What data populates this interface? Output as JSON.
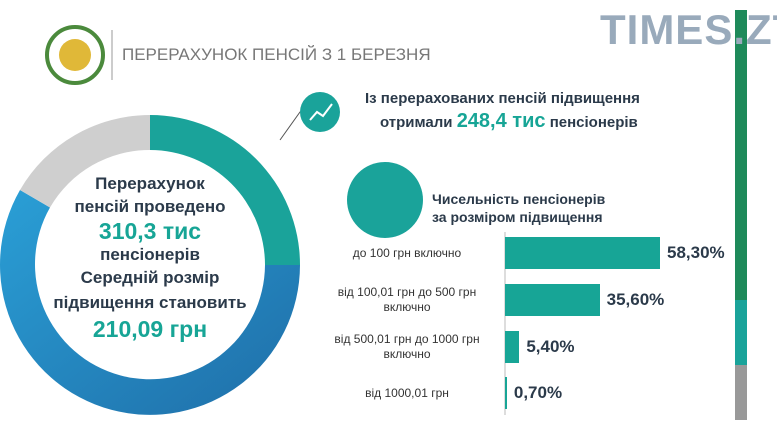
{
  "header": {
    "title": "ПЕРЕРАХУНОК ПЕНСІЙ З 1 БЕРЕЗНЯ",
    "watermark": "TIMES.ZT"
  },
  "donut_text": {
    "line1": "Перерахунок",
    "line2": "пенсій проведено",
    "count": "310,3 тис",
    "line3": "пенсіонерів",
    "line4": "Середній розмір",
    "line5": "підвищення становить",
    "amount": "210,09 грн"
  },
  "callout": {
    "line1": "Із перерахованих пенсій підвищення",
    "prefix": "отримали",
    "count": "248,4 тис",
    "suffix": "пенсіонерів"
  },
  "chart_data": {
    "type": "bar",
    "title": "Чисельність пенсіонерів за розміром підвищення",
    "categories": [
      "до 100 грн включно",
      "від 100,01 грн до 500 грн включно",
      "від 500,01 грн до 1000 грн включно",
      "від 1000,01 грн"
    ],
    "values": [
      58.3,
      35.6,
      5.4,
      0.7
    ],
    "value_labels": [
      "58,30%",
      "35,60%",
      "5,40%",
      "0,70%"
    ],
    "color": "#17a596"
  }
}
